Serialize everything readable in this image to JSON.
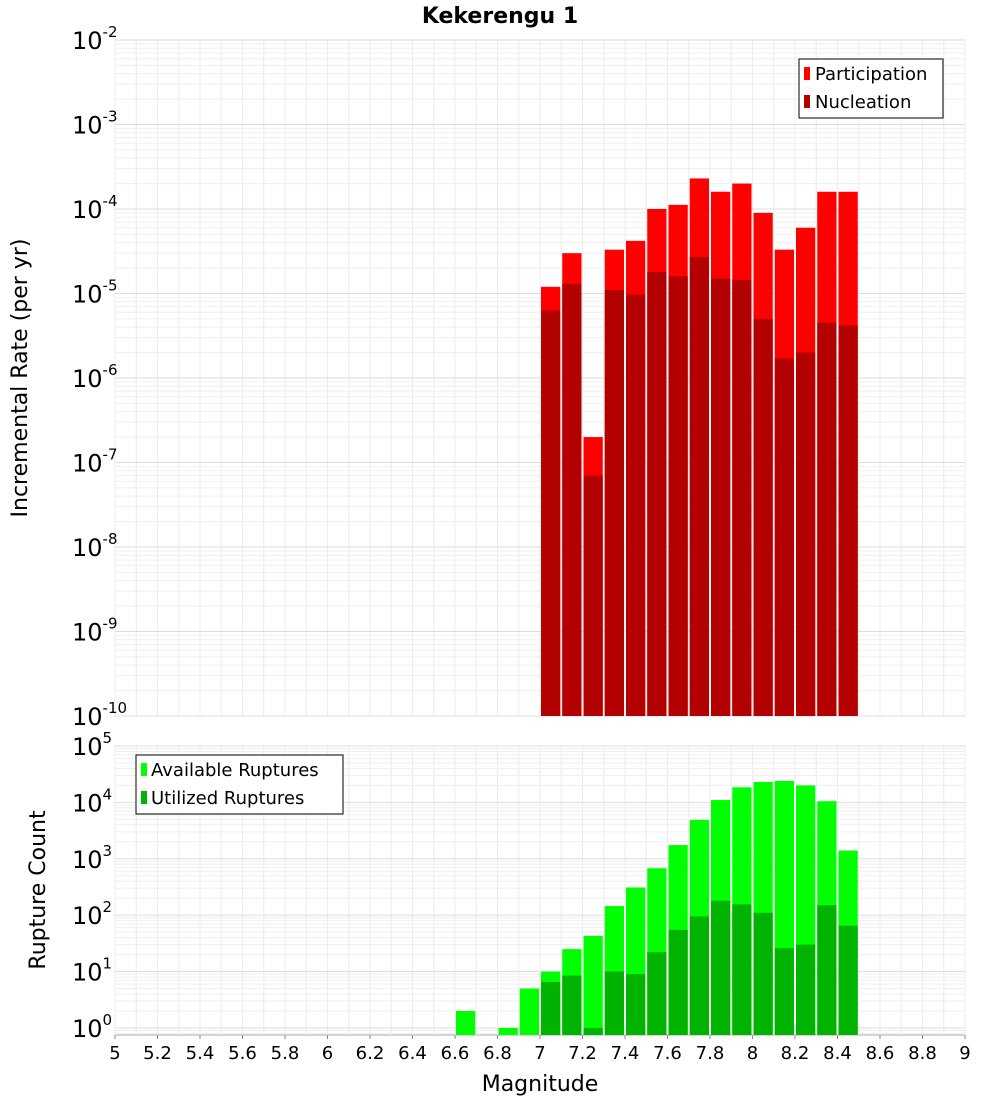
{
  "chart_data": [
    {
      "type": "bar",
      "title": "Kekerengu 1",
      "ylabel": "Incremental Rate (per yr)",
      "yscale": "log",
      "ylim": [
        1e-10,
        0.01
      ],
      "xlim": [
        5,
        9
      ],
      "y_tick_exponents": [
        "-2",
        "-3",
        "-4",
        "-5",
        "-6",
        "-7",
        "-8",
        "-9",
        "-10"
      ],
      "legend_position": "top-right",
      "bin_width": 0.1,
      "x": [
        7.05,
        7.15,
        7.25,
        7.35,
        7.45,
        7.55,
        7.65,
        7.75,
        7.85,
        7.95,
        8.05,
        8.15,
        8.25,
        8.35,
        8.45
      ],
      "series": [
        {
          "name": "Participation",
          "color": "#ff0000",
          "values": [
            1.2e-05,
            3e-05,
            2e-07,
            3.3e-05,
            4.2e-05,
            0.0001,
            0.000112,
            0.00023,
            0.00016,
            0.0002,
            9e-05,
            3.3e-05,
            6e-05,
            0.00016,
            0.00016
          ]
        },
        {
          "name": "Nucleation",
          "color": "#b30000",
          "values": [
            6.3e-06,
            1.3e-05,
            7e-08,
            1.1e-05,
            9.7e-06,
            1.8e-05,
            1.6e-05,
            2.7e-05,
            1.5e-05,
            1.45e-05,
            5e-06,
            1.7e-06,
            2e-06,
            4.5e-06,
            4.2e-06
          ]
        }
      ]
    },
    {
      "type": "bar",
      "ylabel": "Rupture Count",
      "xlabel": "Magnitude",
      "yscale": "log",
      "ylim": [
        0.75,
        100000
      ],
      "xlim": [
        5,
        9
      ],
      "x_ticks": [
        "5",
        "5.2",
        "5.4",
        "5.6",
        "5.8",
        "6",
        "6.2",
        "6.4",
        "6.6",
        "6.8",
        "7",
        "7.2",
        "7.4",
        "7.6",
        "7.8",
        "8",
        "8.2",
        "8.4",
        "8.6",
        "8.8",
        "9"
      ],
      "y_tick_exponents": [
        "0",
        "1",
        "2",
        "3",
        "4",
        "5"
      ],
      "legend_position": "top-left",
      "bin_width": 0.1,
      "x": [
        6.65,
        6.85,
        6.95,
        7.05,
        7.15,
        7.25,
        7.35,
        7.45,
        7.55,
        7.65,
        7.75,
        7.85,
        7.95,
        8.05,
        8.15,
        8.25,
        8.35,
        8.45
      ],
      "series": [
        {
          "name": "Available Ruptures",
          "color": "#00ff00",
          "values": [
            2,
            1,
            5,
            10,
            25,
            43,
            145,
            310,
            680,
            1750,
            4900,
            11000,
            18500,
            23000,
            24000,
            20000,
            10500,
            1400
          ]
        },
        {
          "name": "Utilized Ruptures",
          "color": "#00b300",
          "values": [
            null,
            null,
            null,
            6.5,
            8.5,
            1,
            10,
            9,
            22,
            55,
            95,
            180,
            155,
            110,
            26,
            30,
            150,
            65
          ]
        }
      ]
    }
  ]
}
